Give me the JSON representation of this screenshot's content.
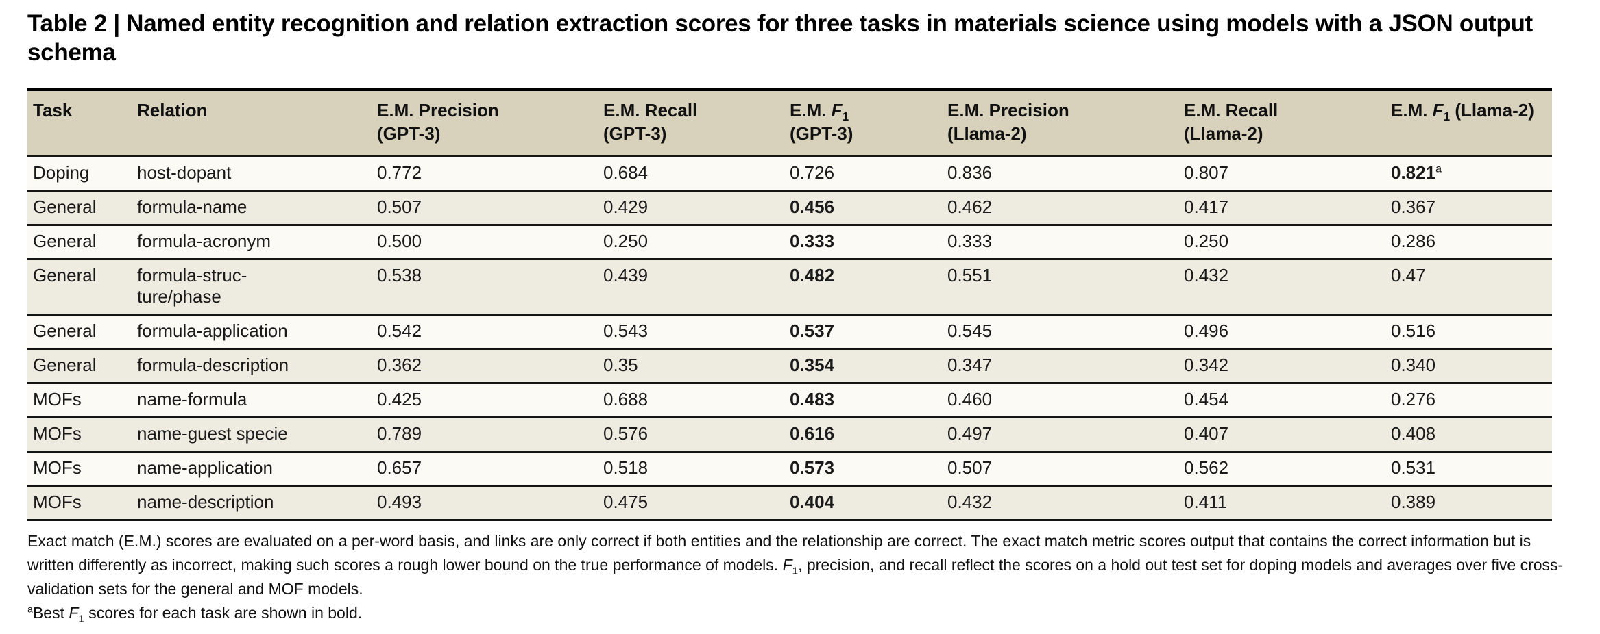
{
  "title": "Table 2 | Named entity recognition and relation extraction scores for three tasks in materials science using models with a JSON output schema",
  "colors": {
    "header_bg": "#d8d2bc",
    "row_light": "#fbfaf4",
    "row_dark": "#eeebe0",
    "rule": "#151515",
    "page_bg": "#ffffff"
  },
  "table": {
    "columns": [
      {
        "id": "task",
        "label_lines": [
          [
            {
              "t": "Task"
            }
          ]
        ]
      },
      {
        "id": "relation",
        "label_lines": [
          [
            {
              "t": "Relation"
            }
          ]
        ]
      },
      {
        "id": "em-precision-gpt3",
        "label_lines": [
          [
            {
              "t": "E.M. Precision"
            }
          ],
          [
            {
              "t": "(GPT-3)"
            }
          ]
        ]
      },
      {
        "id": "em-recall-gpt3",
        "label_lines": [
          [
            {
              "t": "E.M. Recall"
            }
          ],
          [
            {
              "t": "(GPT-3)"
            }
          ]
        ]
      },
      {
        "id": "em-f1-gpt3",
        "label_lines": [
          [
            {
              "t": "E.M. "
            },
            {
              "t": "F",
              "i": true
            },
            {
              "t": "1",
              "sub": true
            }
          ],
          [
            {
              "t": "(GPT-3)"
            }
          ]
        ]
      },
      {
        "id": "em-precision-llama2",
        "label_lines": [
          [
            {
              "t": "E.M. Precision"
            }
          ],
          [
            {
              "t": "(Llama-2)"
            }
          ]
        ]
      },
      {
        "id": "em-recall-llama2",
        "label_lines": [
          [
            {
              "t": "E.M. Recall"
            }
          ],
          [
            {
              "t": "(Llama-2)"
            }
          ]
        ]
      },
      {
        "id": "em-f1-llama2",
        "label_lines": [
          [
            {
              "t": "E.M. "
            },
            {
              "t": "F",
              "i": true
            },
            {
              "t": "1",
              "sub": true
            },
            {
              "t": " (Llama-2)"
            }
          ]
        ]
      }
    ],
    "rows": [
      {
        "task": "Doping",
        "relation_lines": [
          "host-dopant"
        ],
        "values": [
          {
            "t": "0.772"
          },
          {
            "t": "0.684"
          },
          {
            "t": "0.726"
          },
          {
            "t": "0.836"
          },
          {
            "t": "0.807"
          },
          {
            "t": "0.821",
            "bold": true,
            "sup": "a"
          }
        ]
      },
      {
        "task": "General",
        "relation_lines": [
          "formula-name"
        ],
        "values": [
          {
            "t": "0.507"
          },
          {
            "t": "0.429"
          },
          {
            "t": "0.456",
            "bold": true
          },
          {
            "t": "0.462"
          },
          {
            "t": "0.417"
          },
          {
            "t": "0.367"
          }
        ]
      },
      {
        "task": "General",
        "relation_lines": [
          "formula-acronym"
        ],
        "values": [
          {
            "t": "0.500"
          },
          {
            "t": "0.250"
          },
          {
            "t": "0.333",
            "bold": true
          },
          {
            "t": "0.333"
          },
          {
            "t": "0.250"
          },
          {
            "t": "0.286"
          }
        ]
      },
      {
        "task": "General",
        "relation_lines": [
          "formula-struc-",
          "ture/phase"
        ],
        "values": [
          {
            "t": "0.538"
          },
          {
            "t": "0.439"
          },
          {
            "t": "0.482",
            "bold": true
          },
          {
            "t": "0.551"
          },
          {
            "t": "0.432"
          },
          {
            "t": "0.47"
          }
        ]
      },
      {
        "task": "General",
        "relation_lines": [
          "formula-application"
        ],
        "values": [
          {
            "t": "0.542"
          },
          {
            "t": "0.543"
          },
          {
            "t": "0.537",
            "bold": true
          },
          {
            "t": "0.545"
          },
          {
            "t": "0.496"
          },
          {
            "t": "0.516"
          }
        ]
      },
      {
        "task": "General",
        "relation_lines": [
          "formula-description"
        ],
        "values": [
          {
            "t": "0.362"
          },
          {
            "t": "0.35"
          },
          {
            "t": "0.354",
            "bold": true
          },
          {
            "t": "0.347"
          },
          {
            "t": "0.342"
          },
          {
            "t": "0.340"
          }
        ]
      },
      {
        "task": "MOFs",
        "relation_lines": [
          "name-formula"
        ],
        "values": [
          {
            "t": "0.425"
          },
          {
            "t": "0.688"
          },
          {
            "t": "0.483",
            "bold": true
          },
          {
            "t": "0.460"
          },
          {
            "t": "0.454"
          },
          {
            "t": "0.276"
          }
        ]
      },
      {
        "task": "MOFs",
        "relation_lines": [
          "name-guest specie"
        ],
        "values": [
          {
            "t": "0.789"
          },
          {
            "t": "0.576"
          },
          {
            "t": "0.616",
            "bold": true
          },
          {
            "t": "0.497"
          },
          {
            "t": "0.407"
          },
          {
            "t": "0.408"
          }
        ]
      },
      {
        "task": "MOFs",
        "relation_lines": [
          "name-application"
        ],
        "values": [
          {
            "t": "0.657"
          },
          {
            "t": "0.518"
          },
          {
            "t": "0.573",
            "bold": true
          },
          {
            "t": "0.507"
          },
          {
            "t": "0.562"
          },
          {
            "t": "0.531"
          }
        ]
      },
      {
        "task": "MOFs",
        "relation_lines": [
          "name-description"
        ],
        "values": [
          {
            "t": "0.493"
          },
          {
            "t": "0.475"
          },
          {
            "t": "0.404",
            "bold": true
          },
          {
            "t": "0.432"
          },
          {
            "t": "0.411"
          },
          {
            "t": "0.389"
          }
        ]
      }
    ]
  },
  "footnotes": {
    "main": [
      {
        "t": "Exact match (E.M.) scores are evaluated on a per-word basis, and links are only correct if both entities and the relationship are correct. The exact match metric scores output that contains the correct information but is written differently as incorrect, making such scores a rough lower bound on the true performance of models. "
      },
      {
        "t": "F",
        "i": true
      },
      {
        "t": "1",
        "sub": true
      },
      {
        "t": ", precision, and recall reflect the scores on a hold out test set for doping models and averages over five cross-validation sets for the general and MOF models."
      }
    ],
    "bold_note": [
      {
        "t": "a",
        "sup": true
      },
      {
        "t": "Best "
      },
      {
        "t": "F",
        "i": true
      },
      {
        "t": "1",
        "sub": true
      },
      {
        "t": " scores for each task are shown in bold."
      }
    ]
  }
}
